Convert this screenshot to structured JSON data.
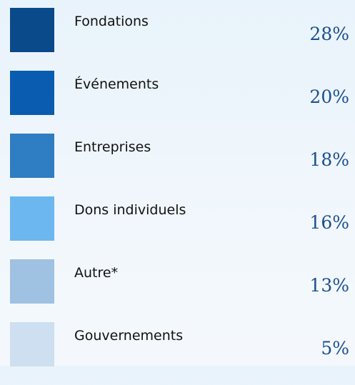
{
  "items": [
    {
      "label": "Fondations",
      "value": "28%",
      "color": "#0b4a8a"
    },
    {
      "label": "Événements",
      "value": "20%",
      "color": "#0a5cb0"
    },
    {
      "label": "Entreprises",
      "value": "18%",
      "color": "#2f7dc2"
    },
    {
      "label": "Dons individuels",
      "value": "16%",
      "color": "#6cb7f0"
    },
    {
      "label": "Autre*",
      "value": "13%",
      "color": "#9fc1e2"
    },
    {
      "label": "Gouvernements",
      "value": "5%",
      "color": "#cddff0"
    }
  ]
}
